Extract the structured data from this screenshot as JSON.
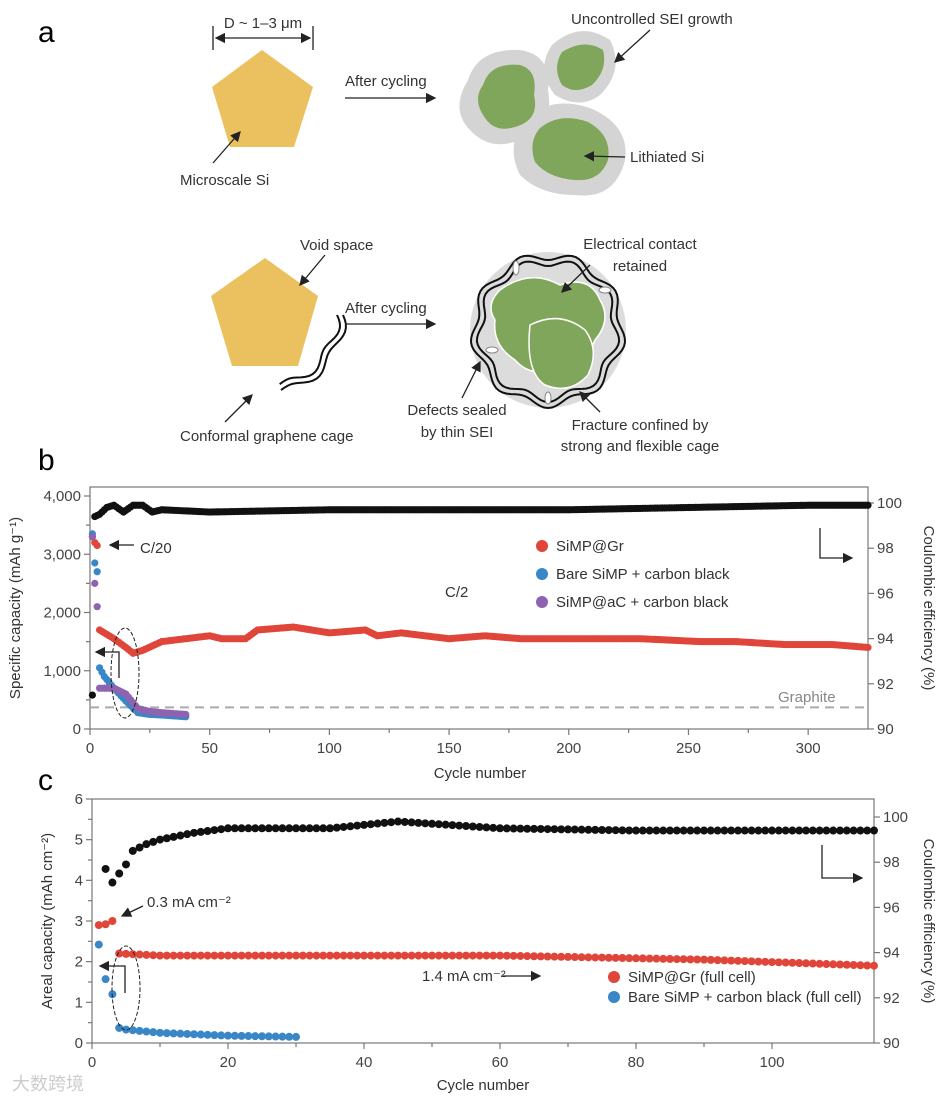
{
  "panel_a": {
    "label": "a",
    "size_label": "D ~ 1–3 μm",
    "microscale_si": "Microscale Si",
    "after_cycling_1": "After cycling",
    "uncontrolled_sei": "Uncontrolled SEI growth",
    "lithiated_si": "Lithiated Si",
    "void_space": "Void space",
    "graphene_cage": "Conformal graphene cage",
    "after_cycling_2": "After cycling",
    "electrical_contact_1": "Electrical contact",
    "electrical_contact_2": "retained",
    "defects_1": "Defects sealed",
    "defects_2": "by thin SEI",
    "fracture_1": "Fracture confined by",
    "fracture_2": "strong and flexible cage",
    "colors": {
      "si": "#ebc15f",
      "lithiated": "#7fa65a",
      "sei": "#d4d4d4"
    }
  },
  "watermark": "大数跨境",
  "chart_data": [
    {
      "id": "b",
      "panel_label": "b",
      "type": "scatter",
      "xlabel": "Cycle number",
      "ylabel": "Specific capacity (mAh g⁻¹)",
      "y2label": "Coulombic efficiency (%)",
      "xlim": [
        0,
        325
      ],
      "ylim": [
        0,
        4000
      ],
      "y2lim": [
        90,
        100
      ],
      "xticks": [
        0,
        50,
        100,
        150,
        200,
        250,
        300
      ],
      "yticks": [
        {
          "v": 0,
          "t": "0"
        },
        {
          "v": 1000,
          "t": "1,000"
        },
        {
          "v": 2000,
          "t": "2,000"
        },
        {
          "v": 3000,
          "t": "3,000"
        },
        {
          "v": 4000,
          "t": "4,000"
        }
      ],
      "y2ticks": [
        90,
        92,
        94,
        96,
        98,
        100
      ],
      "annotations": {
        "c20": "C/20",
        "c2": "C/2",
        "graphite": "Graphite"
      },
      "graphite_capacity": 372,
      "series": [
        {
          "name": "Coulombic efficiency",
          "axis": "right",
          "color": "#111111",
          "legend": false,
          "points": [
            [
              1,
              91.5
            ],
            [
              2,
              99.4
            ],
            [
              4,
              99.5
            ],
            [
              7,
              99.8
            ],
            [
              10,
              99.9
            ],
            [
              14,
              99.6
            ],
            [
              18,
              99.9
            ],
            [
              22,
              99.9
            ],
            [
              26,
              99.6
            ],
            [
              30,
              99.7
            ],
            [
              50,
              99.6
            ],
            [
              100,
              99.7
            ],
            [
              150,
              99.7
            ],
            [
              200,
              99.7
            ],
            [
              250,
              99.8
            ],
            [
              300,
              99.9
            ],
            [
              325,
              99.9
            ]
          ]
        },
        {
          "name": "SiMP@Gr",
          "axis": "left",
          "color": "#e0453a",
          "legend": true,
          "points": [
            [
              1,
              3300
            ],
            [
              2,
              3200
            ],
            [
              3,
              3150
            ],
            [
              4,
              1700
            ],
            [
              10,
              1550
            ],
            [
              15,
              1400
            ],
            [
              18,
              1300
            ],
            [
              22,
              1350
            ],
            [
              30,
              1500
            ],
            [
              40,
              1550
            ],
            [
              50,
              1600
            ],
            [
              55,
              1550
            ],
            [
              65,
              1550
            ],
            [
              70,
              1700
            ],
            [
              85,
              1750
            ],
            [
              100,
              1650
            ],
            [
              115,
              1700
            ],
            [
              120,
              1600
            ],
            [
              130,
              1650
            ],
            [
              140,
              1600
            ],
            [
              150,
              1550
            ],
            [
              165,
              1600
            ],
            [
              180,
              1550
            ],
            [
              200,
              1550
            ],
            [
              230,
              1550
            ],
            [
              255,
              1500
            ],
            [
              270,
              1500
            ],
            [
              290,
              1450
            ],
            [
              310,
              1450
            ],
            [
              325,
              1400
            ]
          ]
        },
        {
          "name": "Bare SiMP + carbon black",
          "axis": "left",
          "color": "#3a87c8",
          "legend": true,
          "points": [
            [
              1,
              3350
            ],
            [
              2,
              2850
            ],
            [
              3,
              2700
            ],
            [
              4,
              1050
            ],
            [
              6,
              900
            ],
            [
              10,
              700
            ],
            [
              15,
              480
            ],
            [
              20,
              280
            ],
            [
              25,
              250
            ],
            [
              30,
              240
            ],
            [
              40,
              210
            ]
          ]
        },
        {
          "name": "SiMP@aC + carbon black",
          "axis": "left",
          "color": "#8e63b0",
          "legend": true,
          "points": [
            [
              1,
              3300
            ],
            [
              2,
              2500
            ],
            [
              3,
              2100
            ],
            [
              4,
              700
            ],
            [
              10,
              700
            ],
            [
              15,
              600
            ],
            [
              20,
              350
            ],
            [
              25,
              300
            ],
            [
              30,
              280
            ],
            [
              40,
              250
            ]
          ]
        }
      ]
    },
    {
      "id": "c",
      "panel_label": "c",
      "type": "scatter",
      "xlabel": "Cycle number",
      "ylabel": "Areal capacity (mAh cm⁻²)",
      "y2label": "Coulombic efficiency (%)",
      "xlim": [
        0,
        115
      ],
      "ylim": [
        0,
        6
      ],
      "y2lim": [
        90,
        100
      ],
      "xticks": [
        0,
        20,
        40,
        60,
        80,
        100
      ],
      "yticks": [
        {
          "v": 0,
          "t": "0"
        },
        {
          "v": 1,
          "t": "1"
        },
        {
          "v": 2,
          "t": "2"
        },
        {
          "v": 3,
          "t": "3"
        },
        {
          "v": 4,
          "t": "4"
        },
        {
          "v": 5,
          "t": "5"
        },
        {
          "v": 6,
          "t": "6"
        }
      ],
      "y2ticks": [
        90,
        92,
        94,
        96,
        98,
        100
      ],
      "annotations": {
        "low_rate": "0.3 mA cm⁻²",
        "high_rate": "1.4 mA cm⁻²"
      },
      "series": [
        {
          "name": "Coulombic efficiency",
          "axis": "right",
          "color": "#111111",
          "legend": false,
          "points": [
            [
              2,
              97.7
            ],
            [
              3,
              97.1
            ],
            [
              5,
              97.9
            ],
            [
              6,
              98.5
            ],
            [
              8,
              98.8
            ],
            [
              10,
              99.0
            ],
            [
              15,
              99.3
            ],
            [
              20,
              99.5
            ],
            [
              35,
              99.5
            ],
            [
              45,
              99.8
            ],
            [
              60,
              99.5
            ],
            [
              80,
              99.4
            ],
            [
              100,
              99.4
            ],
            [
              115,
              99.4
            ]
          ]
        },
        {
          "name": "SiMP@Gr (full cell)",
          "axis": "left",
          "color": "#e0453a",
          "legend": true,
          "points": [
            [
              1,
              2.9
            ],
            [
              2,
              2.92
            ],
            [
              3,
              3.0
            ],
            [
              4,
              2.2
            ],
            [
              10,
              2.15
            ],
            [
              60,
              2.15
            ],
            [
              90,
              2.05
            ],
            [
              115,
              1.9
            ]
          ]
        },
        {
          "name": "Bare SiMP + carbon black (full cell)",
          "axis": "left",
          "color": "#3a87c8",
          "legend": true,
          "points": [
            [
              1,
              2.42
            ],
            [
              2,
              1.57
            ],
            [
              3,
              1.2
            ],
            [
              4,
              0.37
            ],
            [
              5,
              0.33
            ],
            [
              10,
              0.25
            ],
            [
              20,
              0.18
            ],
            [
              30,
              0.15
            ]
          ]
        }
      ]
    }
  ]
}
